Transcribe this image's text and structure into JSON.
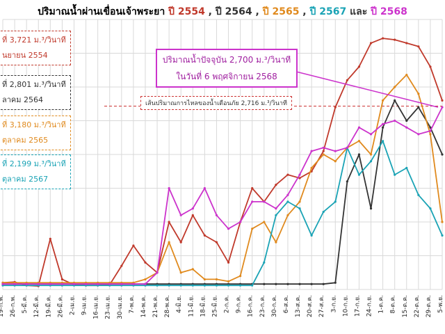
{
  "title": {
    "prefix": "ปริมาณน้ำผ่านเขื่อนเจ้าพระยา",
    "parts": [
      {
        "text": "ปี 2554",
        "color": "#c0392b"
      },
      {
        "text": " , ",
        "color": "#333333"
      },
      {
        "text": "ปี 2564",
        "color": "#333333"
      },
      {
        "text": " , ",
        "color": "#333333"
      },
      {
        "text": "ปี 2565",
        "color": "#e08a1e"
      },
      {
        "text": " , ",
        "color": "#333333"
      },
      {
        "text": "ปี 2567",
        "color": "#1aa3b5"
      },
      {
        "text": " และ ",
        "color": "#333333"
      },
      {
        "text": "ปี 2568",
        "color": "#cc33cc"
      }
    ]
  },
  "peak_boxes": [
    {
      "line1": "ที่ 3,721 ม.³/วินาที",
      "line2": "นยายน 2554",
      "color": "#c0392b"
    },
    {
      "line1": "ที่ 2,801 ม.³/วินาที",
      "line2": "ลาคม 2564",
      "color": "#333333"
    },
    {
      "line1": "ที่ 3,180 ม.³/วินาที",
      "line2": "ตุลาคม 2565",
      "color": "#e08a1e"
    },
    {
      "line1": "ที่ 2,199 ม.³/วินาที",
      "line2": "ตุลาคม 2567",
      "color": "#1aa3b5"
    }
  ],
  "callout": {
    "line1": "ปริมาณน้ำปัจจุบัน 2,700 ม.³/วินาที",
    "line2": "ในวันที่ 6 พฤศจิกายน 2568"
  },
  "threshold_label": "เส้นปริมาณการไหลของน้ำเตือนภัย 2,716 ม.³/วินาที",
  "colors": {
    "y2554": "#c0392b",
    "y2564": "#333333",
    "y2565": "#e08a1e",
    "y2567": "#1aa3b5",
    "y2568": "#cc33cc",
    "threshold": "#cc3333",
    "grid": "#d9d9d9"
  },
  "chart_data": {
    "type": "line",
    "ylim": [
      0,
      4000
    ],
    "grid": true,
    "x_ticks": [
      "19-ก.พ.",
      "26-ก.พ.",
      "5-มี.ค.",
      "12-มี.ค.",
      "19-มี.ค.",
      "26-มี.ค.",
      "2-เม.ย.",
      "9-เม.ย.",
      "16-เม.ย.",
      "23-เม.ย.",
      "30-เม.ย.",
      "7-พ.ค.",
      "14-พ.ค.",
      "21-พ.ค.",
      "28-พ.ค.",
      "4-มิ.ย.",
      "11-มิ.ย.",
      "18-มิ.ย.",
      "25-มิ.ย.",
      "2-ก.ค.",
      "9-ก.ค.",
      "16-ก.ค.",
      "23-ก.ค.",
      "30-ก.ค.",
      "6-ส.ค.",
      "13-ส.ค.",
      "20-ส.ค.",
      "27-ส.ค.",
      "3-ก.ย.",
      "10-ก.ย.",
      "17-ก.ย.",
      "24-ก.ย.",
      "1-ต.ค.",
      "8-ต.ค.",
      "15-ต.ค.",
      "22-ต.ค.",
      "29-ต.ค.",
      "5-พ.ย."
    ],
    "threshold": 2716,
    "series": [
      {
        "name": "ปี 2554",
        "values": [
          100,
          110,
          60,
          50,
          750,
          150,
          70,
          60,
          60,
          70,
          350,
          650,
          400,
          250,
          1000,
          700,
          1100,
          800,
          700,
          400,
          1000,
          1500,
          1300,
          1550,
          1700,
          1650,
          1750,
          2050,
          2700,
          3100,
          3300,
          3650,
          3721,
          3700,
          3650,
          3600,
          3300,
          2800
        ]
      },
      {
        "name": "ปี 2564",
        "values": [
          80,
          80,
          80,
          80,
          80,
          80,
          80,
          80,
          80,
          80,
          80,
          80,
          80,
          80,
          80,
          80,
          80,
          80,
          80,
          80,
          80,
          80,
          80,
          80,
          80,
          80,
          80,
          80,
          100,
          1600,
          2000,
          1200,
          2400,
          2801,
          2500,
          2700,
          2400,
          2000
        ]
      },
      {
        "name": "ปี 2565",
        "values": [
          100,
          100,
          100,
          100,
          100,
          100,
          100,
          100,
          100,
          100,
          100,
          100,
          150,
          250,
          700,
          250,
          300,
          150,
          150,
          120,
          200,
          900,
          1000,
          700,
          1100,
          1300,
          1800,
          2000,
          1900,
          2100,
          2200,
          2000,
          2800,
          3000,
          3180,
          2900,
          2300,
          1000
        ]
      },
      {
        "name": "ปี 2567",
        "values": [
          60,
          60,
          60,
          60,
          60,
          60,
          60,
          60,
          60,
          60,
          60,
          60,
          60,
          60,
          60,
          60,
          60,
          60,
          60,
          60,
          60,
          60,
          400,
          1100,
          1300,
          1200,
          800,
          1150,
          1300,
          2100,
          1700,
          1900,
          2199,
          1700,
          1800,
          1400,
          1200,
          800
        ]
      },
      {
        "name": "ปี 2568",
        "values": [
          80,
          80,
          80,
          80,
          80,
          80,
          80,
          80,
          80,
          80,
          80,
          80,
          80,
          250,
          1500,
          1100,
          1200,
          1500,
          1100,
          900,
          1000,
          1300,
          1300,
          1200,
          1400,
          1700,
          2050,
          2100,
          2050,
          2100,
          2400,
          2300,
          2450,
          2500,
          2400,
          2300,
          2350,
          2700
        ]
      }
    ]
  }
}
